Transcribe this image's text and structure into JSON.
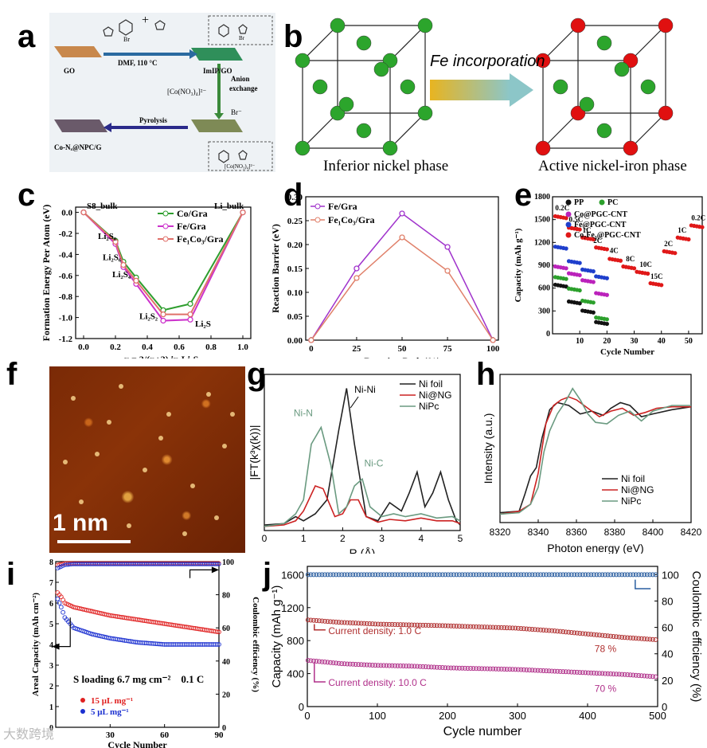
{
  "panels": {
    "a": {
      "label": "a",
      "texts": {
        "go": "GO",
        "cond": "DMF, 110 °C",
        "imip": "ImIP/GO",
        "anion": "Anion exchange",
        "br": "Br⁻",
        "brm": "Br",
        "complex": "[Co(NO₃)₄]²⁻",
        "pyro": "Pyrolysis",
        "product": "Co-Nₓ@NPC/G",
        "complexbox": "[Co(NO₃)₄]²⁻"
      }
    },
    "b": {
      "label": "b",
      "arrow_text": "Fe incorporation",
      "left_caption": "Inferior nickel phase",
      "right_caption": "Active nickel-iron phase",
      "colors": {
        "ni": "#2ca52c",
        "fe": "#e01010"
      }
    },
    "c": {
      "label": "c"
    },
    "d": {
      "label": "d"
    },
    "e": {
      "label": "e"
    },
    "f": {
      "label": "f",
      "scale_text": "1 nm"
    },
    "g": {
      "label": "g"
    },
    "h": {
      "label": "h"
    },
    "i": {
      "label": "i",
      "annotation": "S loading 6.7 mg cm⁻²    0.1 C"
    },
    "j": {
      "label": "j"
    }
  },
  "chart_data": [
    {
      "id": "c",
      "type": "line",
      "xlabel": "x = 2/(n+2) in Li₂Sₙ",
      "ylabel": "Formation Energy Per Atom (eV)",
      "xlim": [
        -0.05,
        1.05
      ],
      "ylim": [
        -1.2,
        0.05
      ],
      "xticks": [
        "0.0",
        "0.2",
        "0.4",
        "0.6",
        "0.8",
        "1.0"
      ],
      "yticks": [
        "0.0",
        "-0.2",
        "-0.4",
        "-0.6",
        "-0.8",
        "-1.0",
        "-1.2"
      ],
      "x": [
        0,
        0.2,
        0.25,
        0.33,
        0.5,
        0.67,
        1.0
      ],
      "point_labels": [
        "S8_bulk",
        "Li₂S₈",
        "Li₂S₆",
        "Li₂S₄",
        "Li₂S₂",
        "Li₂S",
        "Li_bulk"
      ],
      "series": [
        {
          "name": "Co/Gra",
          "color": "#2e9e2e",
          "values": [
            0,
            -0.27,
            -0.47,
            -0.62,
            -0.93,
            -0.87,
            0
          ]
        },
        {
          "name": "Fe/Gra",
          "color": "#cc33cc",
          "values": [
            0,
            -0.3,
            -0.52,
            -0.68,
            -1.03,
            -1.02,
            0
          ]
        },
        {
          "name": "Fe₁Co₃/Gra",
          "color": "#e0706a",
          "values": [
            0,
            -0.28,
            -0.5,
            -0.65,
            -0.97,
            -0.97,
            0
          ]
        }
      ]
    },
    {
      "id": "d",
      "type": "line",
      "xlabel": "Reaction Path (%)",
      "ylabel": "Reaction Barrier (eV)",
      "xlim": [
        -3,
        103
      ],
      "ylim": [
        0,
        0.3
      ],
      "xticks": [
        "0",
        "25",
        "50",
        "75",
        "100"
      ],
      "yticks": [
        "0.00",
        "0.05",
        "0.10",
        "0.15",
        "0.20",
        "0.25",
        "0.30"
      ],
      "x": [
        0,
        25,
        50,
        75,
        100
      ],
      "series": [
        {
          "name": "Fe/Gra",
          "color": "#a033cc",
          "values": [
            0,
            0.15,
            0.265,
            0.195,
            0
          ]
        },
        {
          "name": "Fe₁Co₃/Gra",
          "color": "#e0806a",
          "values": [
            0,
            0.13,
            0.215,
            0.145,
            0
          ]
        }
      ]
    },
    {
      "id": "e",
      "type": "scatter",
      "xlabel": "Cycle Number",
      "ylabel": "Capacity (mAh g⁻¹)",
      "xlim": [
        0,
        55
      ],
      "ylim": [
        0,
        1800
      ],
      "xticks": [
        "10",
        "20",
        "30",
        "40",
        "50"
      ],
      "yticks": [
        "0",
        "300",
        "600",
        "900",
        "1200",
        "1500",
        "1800"
      ],
      "rate_labels": [
        "0.2C",
        "0.5C",
        "1C",
        "2C",
        "4C",
        "8C",
        "10C",
        "15C",
        "2C",
        "1C",
        "0.2C"
      ],
      "series": [
        {
          "name": "PP",
          "color": "#111111",
          "segments": [
            [
              1,
              5,
              620
            ],
            [
              6,
              10,
              400
            ],
            [
              11,
              15,
              280
            ],
            [
              16,
              20,
              130
            ]
          ]
        },
        {
          "name": "PC",
          "color": "#2ca02c",
          "segments": [
            [
              1,
              5,
              720
            ],
            [
              6,
              10,
              570
            ],
            [
              11,
              15,
              410
            ],
            [
              16,
              20,
              190
            ]
          ]
        },
        {
          "name": "Co@PGC-CNT",
          "color": "#bb22bb",
          "segments": [
            [
              1,
              5,
              860
            ],
            [
              6,
              10,
              770
            ],
            [
              11,
              15,
              680
            ],
            [
              16,
              20,
              510
            ]
          ]
        },
        {
          "name": "Fe@PGC-CNT",
          "color": "#1f3fcc",
          "segments": [
            [
              1,
              5,
              1120
            ],
            [
              6,
              10,
              930
            ],
            [
              11,
              15,
              820
            ],
            [
              16,
              20,
              730
            ]
          ]
        },
        {
          "name": "Co₇Fe₃@PGC-CNT",
          "color": "#e01818",
          "segments": [
            [
              1,
              5,
              1520
            ],
            [
              6,
              10,
              1370
            ],
            [
              11,
              15,
              1240
            ],
            [
              16,
              20,
              1110
            ],
            [
              21,
              25,
              960
            ],
            [
              26,
              30,
              860
            ],
            [
              31,
              35,
              790
            ],
            [
              36,
              40,
              640
            ],
            [
              41,
              45,
              1060
            ],
            [
              46,
              50,
              1240
            ],
            [
              51,
              55,
              1400
            ]
          ]
        }
      ]
    },
    {
      "id": "g",
      "type": "line",
      "xlabel": "R (Å)",
      "ylabel": "|FT(k³χ(k))|",
      "xlim": [
        0,
        5
      ],
      "xticks": [
        "0",
        "1",
        "2",
        "3",
        "4",
        "5"
      ],
      "annotations": [
        "Ni-Ni",
        "Ni-N",
        "Ni-C"
      ],
      "series": [
        {
          "name": "Ni foil",
          "color": "#222222",
          "x": [
            0,
            0.5,
            0.8,
            1.0,
            1.3,
            1.6,
            1.9,
            2.1,
            2.3,
            2.6,
            2.9,
            3.2,
            3.5,
            3.7,
            3.9,
            4.1,
            4.3,
            4.5,
            4.7,
            4.9,
            5.0
          ],
          "values": [
            0.02,
            0.03,
            0.08,
            0.05,
            0.1,
            0.2,
            0.7,
            1.0,
            0.6,
            0.08,
            0.05,
            0.18,
            0.12,
            0.25,
            0.4,
            0.15,
            0.25,
            0.4,
            0.2,
            0.05,
            0.02
          ]
        },
        {
          "name": "Ni@NG",
          "color": "#cc2222",
          "x": [
            0,
            0.5,
            0.8,
            1.0,
            1.3,
            1.5,
            1.8,
            2.0,
            2.2,
            2.4,
            2.6,
            2.9,
            3.2,
            3.6,
            4.0,
            4.4,
            4.8,
            5.0
          ],
          "values": [
            0.01,
            0.02,
            0.05,
            0.12,
            0.3,
            0.28,
            0.08,
            0.1,
            0.2,
            0.2,
            0.08,
            0.04,
            0.06,
            0.05,
            0.07,
            0.05,
            0.05,
            0.03
          ]
        },
        {
          "name": "NiPc",
          "color": "#6a9a80",
          "x": [
            0,
            0.5,
            0.8,
            1.0,
            1.2,
            1.45,
            1.7,
            1.9,
            2.1,
            2.3,
            2.5,
            2.7,
            3.0,
            3.3,
            3.6,
            4.0,
            4.4,
            4.8,
            5.0
          ],
          "values": [
            0.01,
            0.03,
            0.1,
            0.2,
            0.6,
            0.72,
            0.45,
            0.1,
            0.15,
            0.3,
            0.35,
            0.15,
            0.08,
            0.1,
            0.08,
            0.1,
            0.07,
            0.08,
            0.05
          ]
        }
      ]
    },
    {
      "id": "h",
      "type": "line",
      "xlabel": "Photon energy (eV)",
      "ylabel": "Intensity (a.u.)",
      "xlim": [
        8320,
        8420
      ],
      "xticks": [
        "8320",
        "8340",
        "8360",
        "8380",
        "8400",
        "8420"
      ],
      "series": [
        {
          "name": "Ni foil",
          "color": "#222222",
          "x": [
            8320,
            8330,
            8333,
            8336,
            8339,
            8342,
            8346,
            8350,
            8356,
            8362,
            8368,
            8374,
            8378,
            8383,
            8388,
            8394,
            8400,
            8410,
            8420
          ],
          "values": [
            0.02,
            0.03,
            0.15,
            0.28,
            0.34,
            0.55,
            0.75,
            0.8,
            0.78,
            0.72,
            0.74,
            0.71,
            0.76,
            0.8,
            0.78,
            0.7,
            0.72,
            0.75,
            0.77
          ]
        },
        {
          "name": "Ni@NG",
          "color": "#cc2222",
          "x": [
            8320,
            8330,
            8336,
            8340,
            8344,
            8348,
            8352,
            8356,
            8360,
            8366,
            8372,
            8378,
            8384,
            8390,
            8396,
            8402,
            8410,
            8420
          ],
          "values": [
            0.01,
            0.03,
            0.08,
            0.3,
            0.65,
            0.78,
            0.82,
            0.84,
            0.82,
            0.76,
            0.7,
            0.74,
            0.76,
            0.71,
            0.73,
            0.76,
            0.77,
            0.77
          ]
        },
        {
          "name": "NiPc",
          "color": "#6a9a80",
          "x": [
            8320,
            8330,
            8336,
            8340,
            8343,
            8346,
            8350,
            8354,
            8358,
            8362,
            8366,
            8370,
            8376,
            8382,
            8388,
            8394,
            8400,
            8410,
            8420
          ],
          "values": [
            0.01,
            0.02,
            0.08,
            0.2,
            0.45,
            0.6,
            0.72,
            0.8,
            0.9,
            0.82,
            0.72,
            0.66,
            0.65,
            0.71,
            0.74,
            0.67,
            0.74,
            0.78,
            0.78
          ]
        }
      ]
    },
    {
      "id": "i",
      "type": "scatter",
      "xlabel": "Cycle Number",
      "ylabel": "Areal Capacity (mAh cm⁻²)",
      "ylabel2": "Coulombic efficiency (%)",
      "xlim": [
        0,
        90
      ],
      "ylim": [
        0,
        8
      ],
      "y2lim": [
        0,
        100
      ],
      "xticks": [
        "30",
        "60",
        "90"
      ],
      "yticks": [
        "0",
        "1",
        "2",
        "3",
        "4",
        "5",
        "6",
        "7",
        "8"
      ],
      "y2ticks": [
        "0",
        "20",
        "40",
        "60",
        "80",
        "100"
      ],
      "series": [
        {
          "name": "15 μL mg⁻¹",
          "color": "#e02020",
          "x": [
            1,
            3,
            5,
            10,
            20,
            30,
            45,
            60,
            75,
            90
          ],
          "values": [
            6.5,
            6.3,
            6.0,
            5.8,
            5.6,
            5.4,
            5.2,
            5.0,
            4.8,
            4.6
          ]
        },
        {
          "name": "5  μL mg⁻¹",
          "color": "#1a2fd0",
          "x": [
            1,
            3,
            5,
            10,
            20,
            30,
            45,
            60,
            75,
            90
          ],
          "values": [
            6.2,
            5.8,
            5.3,
            4.8,
            4.5,
            4.3,
            4.1,
            4.0,
            4.0,
            4.0
          ]
        }
      ],
      "efficiency": [
        {
          "color": "#e02020",
          "x": [
            1,
            5,
            10,
            30,
            60,
            90
          ],
          "values": [
            98,
            99,
            99,
            99,
            99,
            99
          ]
        },
        {
          "color": "#1a2fd0",
          "x": [
            1,
            5,
            10,
            30,
            60,
            90
          ],
          "values": [
            96,
            98,
            98.5,
            98.5,
            98.5,
            98.5
          ]
        }
      ]
    },
    {
      "id": "j",
      "type": "scatter",
      "xlabel": "Cycle number",
      "ylabel": "Capacity (mAh g⁻¹)",
      "ylabel2": "Coulombic efficiency (%)",
      "xlim": [
        0,
        500
      ],
      "ylim": [
        0,
        1700
      ],
      "y2lim": [
        0,
        106.25
      ],
      "xticks": [
        "0",
        "100",
        "200",
        "300",
        "400",
        "500"
      ],
      "yticks": [
        "0",
        "400",
        "800",
        "1200",
        "1600"
      ],
      "y2ticks": [
        "0",
        "20",
        "40",
        "60",
        "80",
        "100"
      ],
      "annotations": [
        "Current density: 1.0 C",
        "78 %",
        "Current density: 10.0 C",
        "70 %"
      ],
      "series": [
        {
          "name": "Current density: 1.0 C",
          "color": "#b03030",
          "x": [
            1,
            50,
            100,
            150,
            200,
            250,
            300,
            350,
            400,
            450,
            500
          ],
          "values": [
            1050,
            1020,
            1000,
            990,
            980,
            965,
            950,
            920,
            880,
            840,
            810
          ]
        },
        {
          "name": "Current density: 10.0 C",
          "color": "#b0308a",
          "x": [
            1,
            50,
            100,
            150,
            200,
            250,
            300,
            350,
            400,
            450,
            500
          ],
          "values": [
            560,
            520,
            500,
            490,
            470,
            460,
            450,
            430,
            410,
            390,
            360
          ]
        },
        {
          "name": "Coulombic efficiency",
          "color": "#2a5ea0",
          "x": [
            1,
            100,
            200,
            300,
            400,
            500
          ],
          "values": [
            100,
            100,
            100,
            100,
            100,
            100
          ],
          "axis": "right"
        }
      ]
    }
  ],
  "watermark": "大数跨境"
}
